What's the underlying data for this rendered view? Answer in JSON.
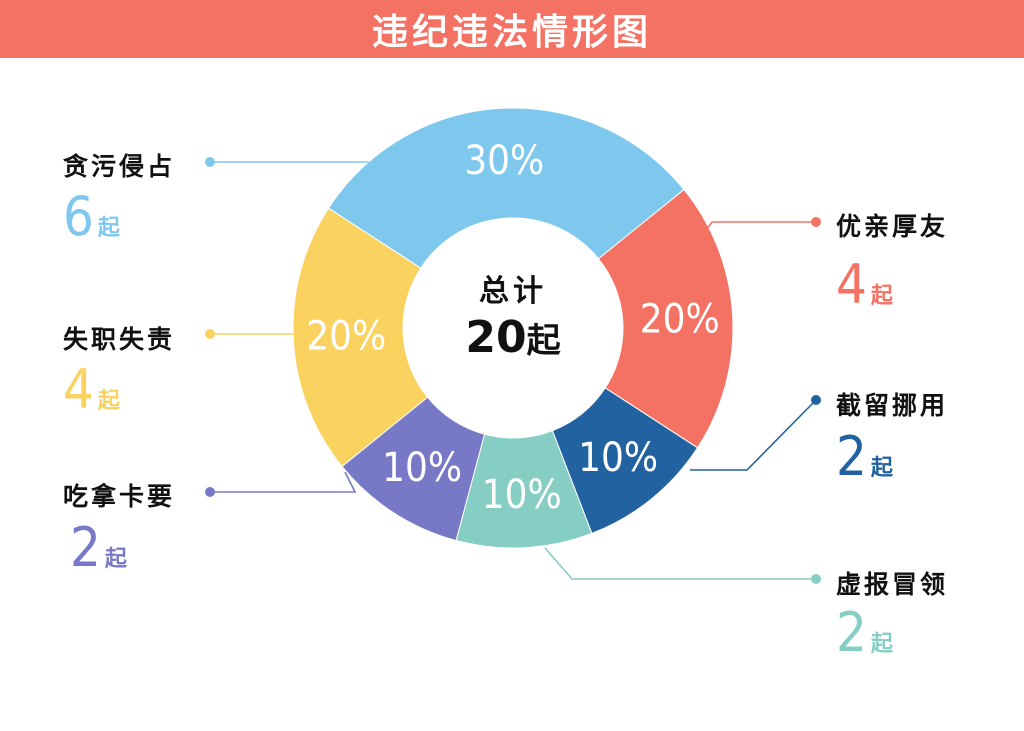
{
  "header": {
    "title": "违纪违法情形图"
  },
  "center": {
    "title": "总计",
    "value": "20",
    "unit": "起"
  },
  "unit": "起",
  "chart_data": {
    "type": "pie",
    "donut": true,
    "title": "违纪违法情形图",
    "total": 20,
    "slices": [
      {
        "name": "贪污侵占",
        "count": 6,
        "count_text": "6",
        "percent": 30,
        "percent_text": "30%",
        "color": "#7ec8ee"
      },
      {
        "name": "优亲厚友",
        "count": 4,
        "count_text": "4",
        "percent": 20,
        "percent_text": "20%",
        "color": "#f47264"
      },
      {
        "name": "截留挪用",
        "count": 2,
        "count_text": "2",
        "percent": 10,
        "percent_text": "10%",
        "color": "#2262a0"
      },
      {
        "name": "虚报冒领",
        "count": 2,
        "count_text": "2",
        "percent": 10,
        "percent_text": "10%",
        "color": "#86cdc4"
      },
      {
        "name": "吃拿卡要",
        "count": 2,
        "count_text": "2",
        "percent": 10,
        "percent_text": "10%",
        "color": "#7779c6"
      },
      {
        "name": "失职失责",
        "count": 4,
        "count_text": "4",
        "percent": 20,
        "percent_text": "20%",
        "color": "#f9d260"
      }
    ]
  }
}
